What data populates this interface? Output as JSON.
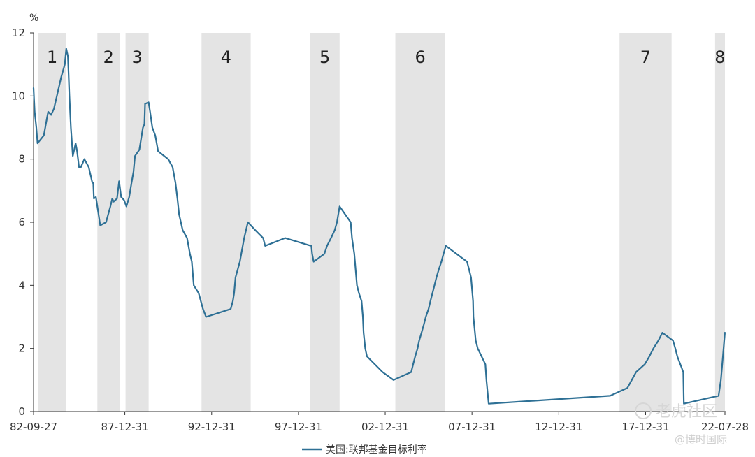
{
  "chart_data": {
    "type": "line",
    "unit_label": "%",
    "ylim": [
      0,
      12
    ],
    "y_ticks": [
      0,
      2,
      4,
      6,
      8,
      10,
      12
    ],
    "x_range": [
      "1982-09-27",
      "2022-07-28"
    ],
    "x_ticks": [
      {
        "date": "1982-09-27",
        "label": "82-09-27"
      },
      {
        "date": "1987-12-31",
        "label": "87-12-31"
      },
      {
        "date": "1992-12-31",
        "label": "92-12-31"
      },
      {
        "date": "1997-12-31",
        "label": "97-12-31"
      },
      {
        "date": "2002-12-31",
        "label": "02-12-31"
      },
      {
        "date": "2007-12-31",
        "label": "07-12-31"
      },
      {
        "date": "2012-12-31",
        "label": "12-12-31"
      },
      {
        "date": "2017-12-31",
        "label": "17-12-31"
      },
      {
        "date": "2022-07-28",
        "label": "22-07-28"
      }
    ],
    "shaded_periods": [
      {
        "label": "1",
        "start": "1983-01-01",
        "end": "1984-08-15"
      },
      {
        "label": "2",
        "start": "1986-06-01",
        "end": "1987-09-15"
      },
      {
        "label": "3",
        "start": "1988-01-15",
        "end": "1989-05-15"
      },
      {
        "label": "4",
        "start": "1992-06-01",
        "end": "1995-04-01"
      },
      {
        "label": "5",
        "start": "1998-09-01",
        "end": "2000-05-15"
      },
      {
        "label": "6",
        "start": "2003-08-01",
        "end": "2006-06-15"
      },
      {
        "label": "7",
        "start": "2016-07-01",
        "end": "2019-07-01"
      },
      {
        "label": "8",
        "start": "2022-01-01",
        "end": "2022-07-28"
      }
    ],
    "series": [
      {
        "name": "美国:联邦基金目标利率",
        "color": "#2e7095",
        "points": [
          [
            "1982-09-27",
            10.25
          ],
          [
            "1982-10-20",
            9.5
          ],
          [
            "1982-11-25",
            9.0
          ],
          [
            "1982-12-20",
            8.5
          ],
          [
            "1983-05-01",
            8.75
          ],
          [
            "1983-07-01",
            9.25
          ],
          [
            "1983-08-01",
            9.5
          ],
          [
            "1983-10-01",
            9.4
          ],
          [
            "1983-12-01",
            9.6
          ],
          [
            "1984-05-01",
            10.6
          ],
          [
            "1984-07-15",
            11.0
          ],
          [
            "1984-08-15",
            11.5
          ],
          [
            "1984-09-20",
            11.25
          ],
          [
            "1984-10-20",
            10.0
          ],
          [
            "1984-11-20",
            9.0
          ],
          [
            "1985-01-01",
            8.1
          ],
          [
            "1985-03-01",
            8.5
          ],
          [
            "1985-04-01",
            8.25
          ],
          [
            "1985-05-10",
            7.75
          ],
          [
            "1985-06-20",
            7.75
          ],
          [
            "1985-09-01",
            8.0
          ],
          [
            "1985-12-01",
            7.75
          ],
          [
            "1986-02-15",
            7.25
          ],
          [
            "1986-03-07",
            7.25
          ],
          [
            "1986-03-20",
            6.75
          ],
          [
            "1986-05-01",
            6.8
          ],
          [
            "1986-08-01",
            5.9
          ],
          [
            "1986-12-01",
            6.0
          ],
          [
            "1987-03-01",
            6.5
          ],
          [
            "1987-04-10",
            6.75
          ],
          [
            "1987-05-10",
            6.65
          ],
          [
            "1987-07-20",
            6.75
          ],
          [
            "1987-09-01",
            7.3
          ],
          [
            "1987-10-15",
            6.8
          ],
          [
            "1987-12-15",
            6.7
          ],
          [
            "1988-02-01",
            6.5
          ],
          [
            "1988-04-01",
            6.8
          ],
          [
            "1988-05-20",
            7.25
          ],
          [
            "1988-07-01",
            7.6
          ],
          [
            "1988-08-01",
            8.1
          ],
          [
            "1988-11-01",
            8.3
          ],
          [
            "1989-01-15",
            9.0
          ],
          [
            "1989-02-15",
            9.1
          ],
          [
            "1989-03-01",
            9.75
          ],
          [
            "1989-05-15",
            9.8
          ],
          [
            "1989-06-15",
            9.5
          ],
          [
            "1989-08-01",
            9.0
          ],
          [
            "1989-10-01",
            8.75
          ],
          [
            "1989-12-01",
            8.25
          ],
          [
            "1990-07-01",
            8.0
          ],
          [
            "1990-10-01",
            7.75
          ],
          [
            "1990-12-01",
            7.25
          ],
          [
            "1991-01-10",
            6.75
          ],
          [
            "1991-02-15",
            6.25
          ],
          [
            "1991-05-01",
            5.75
          ],
          [
            "1991-08-01",
            5.5
          ],
          [
            "1991-10-01",
            5.0
          ],
          [
            "1991-11-10",
            4.75
          ],
          [
            "1991-12-20",
            4.0
          ],
          [
            "1992-04-01",
            3.75
          ],
          [
            "1992-07-02",
            3.25
          ],
          [
            "1992-09-04",
            3.0
          ],
          [
            "1994-02-04",
            3.25
          ],
          [
            "1994-03-22",
            3.5
          ],
          [
            "1994-04-18",
            3.75
          ],
          [
            "1994-05-17",
            4.25
          ],
          [
            "1994-08-16",
            4.75
          ],
          [
            "1994-11-15",
            5.5
          ],
          [
            "1995-02-01",
            6.0
          ],
          [
            "1995-07-06",
            5.75
          ],
          [
            "1995-12-19",
            5.5
          ],
          [
            "1996-01-31",
            5.25
          ],
          [
            "1997-03-25",
            5.5
          ],
          [
            "1998-09-29",
            5.25
          ],
          [
            "1998-10-15",
            5.0
          ],
          [
            "1998-11-17",
            4.75
          ],
          [
            "1999-06-30",
            5.0
          ],
          [
            "1999-08-24",
            5.25
          ],
          [
            "1999-11-16",
            5.5
          ],
          [
            "2000-02-02",
            5.75
          ],
          [
            "2000-03-21",
            6.0
          ],
          [
            "2000-05-16",
            6.5
          ],
          [
            "2001-01-03",
            6.0
          ],
          [
            "2001-01-31",
            5.5
          ],
          [
            "2001-03-20",
            5.0
          ],
          [
            "2001-04-18",
            4.5
          ],
          [
            "2001-05-15",
            4.0
          ],
          [
            "2001-06-27",
            3.75
          ],
          [
            "2001-08-21",
            3.5
          ],
          [
            "2001-09-17",
            3.0
          ],
          [
            "2001-10-02",
            2.5
          ],
          [
            "2001-11-06",
            2.0
          ],
          [
            "2001-12-11",
            1.75
          ],
          [
            "2002-11-06",
            1.25
          ],
          [
            "2003-06-25",
            1.0
          ],
          [
            "2004-06-30",
            1.25
          ],
          [
            "2004-08-10",
            1.5
          ],
          [
            "2004-09-21",
            1.75
          ],
          [
            "2004-11-10",
            2.0
          ],
          [
            "2004-12-14",
            2.25
          ],
          [
            "2005-02-02",
            2.5
          ],
          [
            "2005-03-22",
            2.75
          ],
          [
            "2005-05-03",
            3.0
          ],
          [
            "2005-06-30",
            3.25
          ],
          [
            "2005-08-09",
            3.5
          ],
          [
            "2005-09-20",
            3.75
          ],
          [
            "2005-11-01",
            4.0
          ],
          [
            "2005-12-13",
            4.25
          ],
          [
            "2006-01-31",
            4.5
          ],
          [
            "2006-03-28",
            4.75
          ],
          [
            "2006-05-10",
            5.0
          ],
          [
            "2006-06-29",
            5.25
          ],
          [
            "2007-09-18",
            4.75
          ],
          [
            "2007-10-31",
            4.5
          ],
          [
            "2007-12-11",
            4.25
          ],
          [
            "2008-01-22",
            3.5
          ],
          [
            "2008-01-30",
            3.0
          ],
          [
            "2008-03-18",
            2.25
          ],
          [
            "2008-04-30",
            2.0
          ],
          [
            "2008-10-08",
            1.5
          ],
          [
            "2008-10-29",
            1.0
          ],
          [
            "2008-12-16",
            0.25
          ],
          [
            "2015-12-16",
            0.5
          ],
          [
            "2016-12-14",
            0.75
          ],
          [
            "2017-03-15",
            1.0
          ],
          [
            "2017-06-14",
            1.25
          ],
          [
            "2017-12-13",
            1.5
          ],
          [
            "2018-03-21",
            1.75
          ],
          [
            "2018-06-13",
            2.0
          ],
          [
            "2018-09-26",
            2.25
          ],
          [
            "2018-12-19",
            2.5
          ],
          [
            "2019-07-31",
            2.25
          ],
          [
            "2019-09-18",
            2.0
          ],
          [
            "2019-10-30",
            1.75
          ],
          [
            "2020-03-03",
            1.25
          ],
          [
            "2020-03-15",
            0.25
          ],
          [
            "2022-03-16",
            0.5
          ],
          [
            "2022-05-04",
            1.0
          ],
          [
            "2022-06-15",
            1.75
          ],
          [
            "2022-07-27",
            2.5
          ]
        ]
      }
    ]
  },
  "legend": {
    "label": "美国:联邦基金目标利率",
    "color": "#2e7095"
  },
  "watermark": {
    "line1": "老虎社区",
    "line2": "@博时国际"
  },
  "colors": {
    "band": "#e4e4e4",
    "axis": "#333333",
    "line": "#2e7095"
  }
}
